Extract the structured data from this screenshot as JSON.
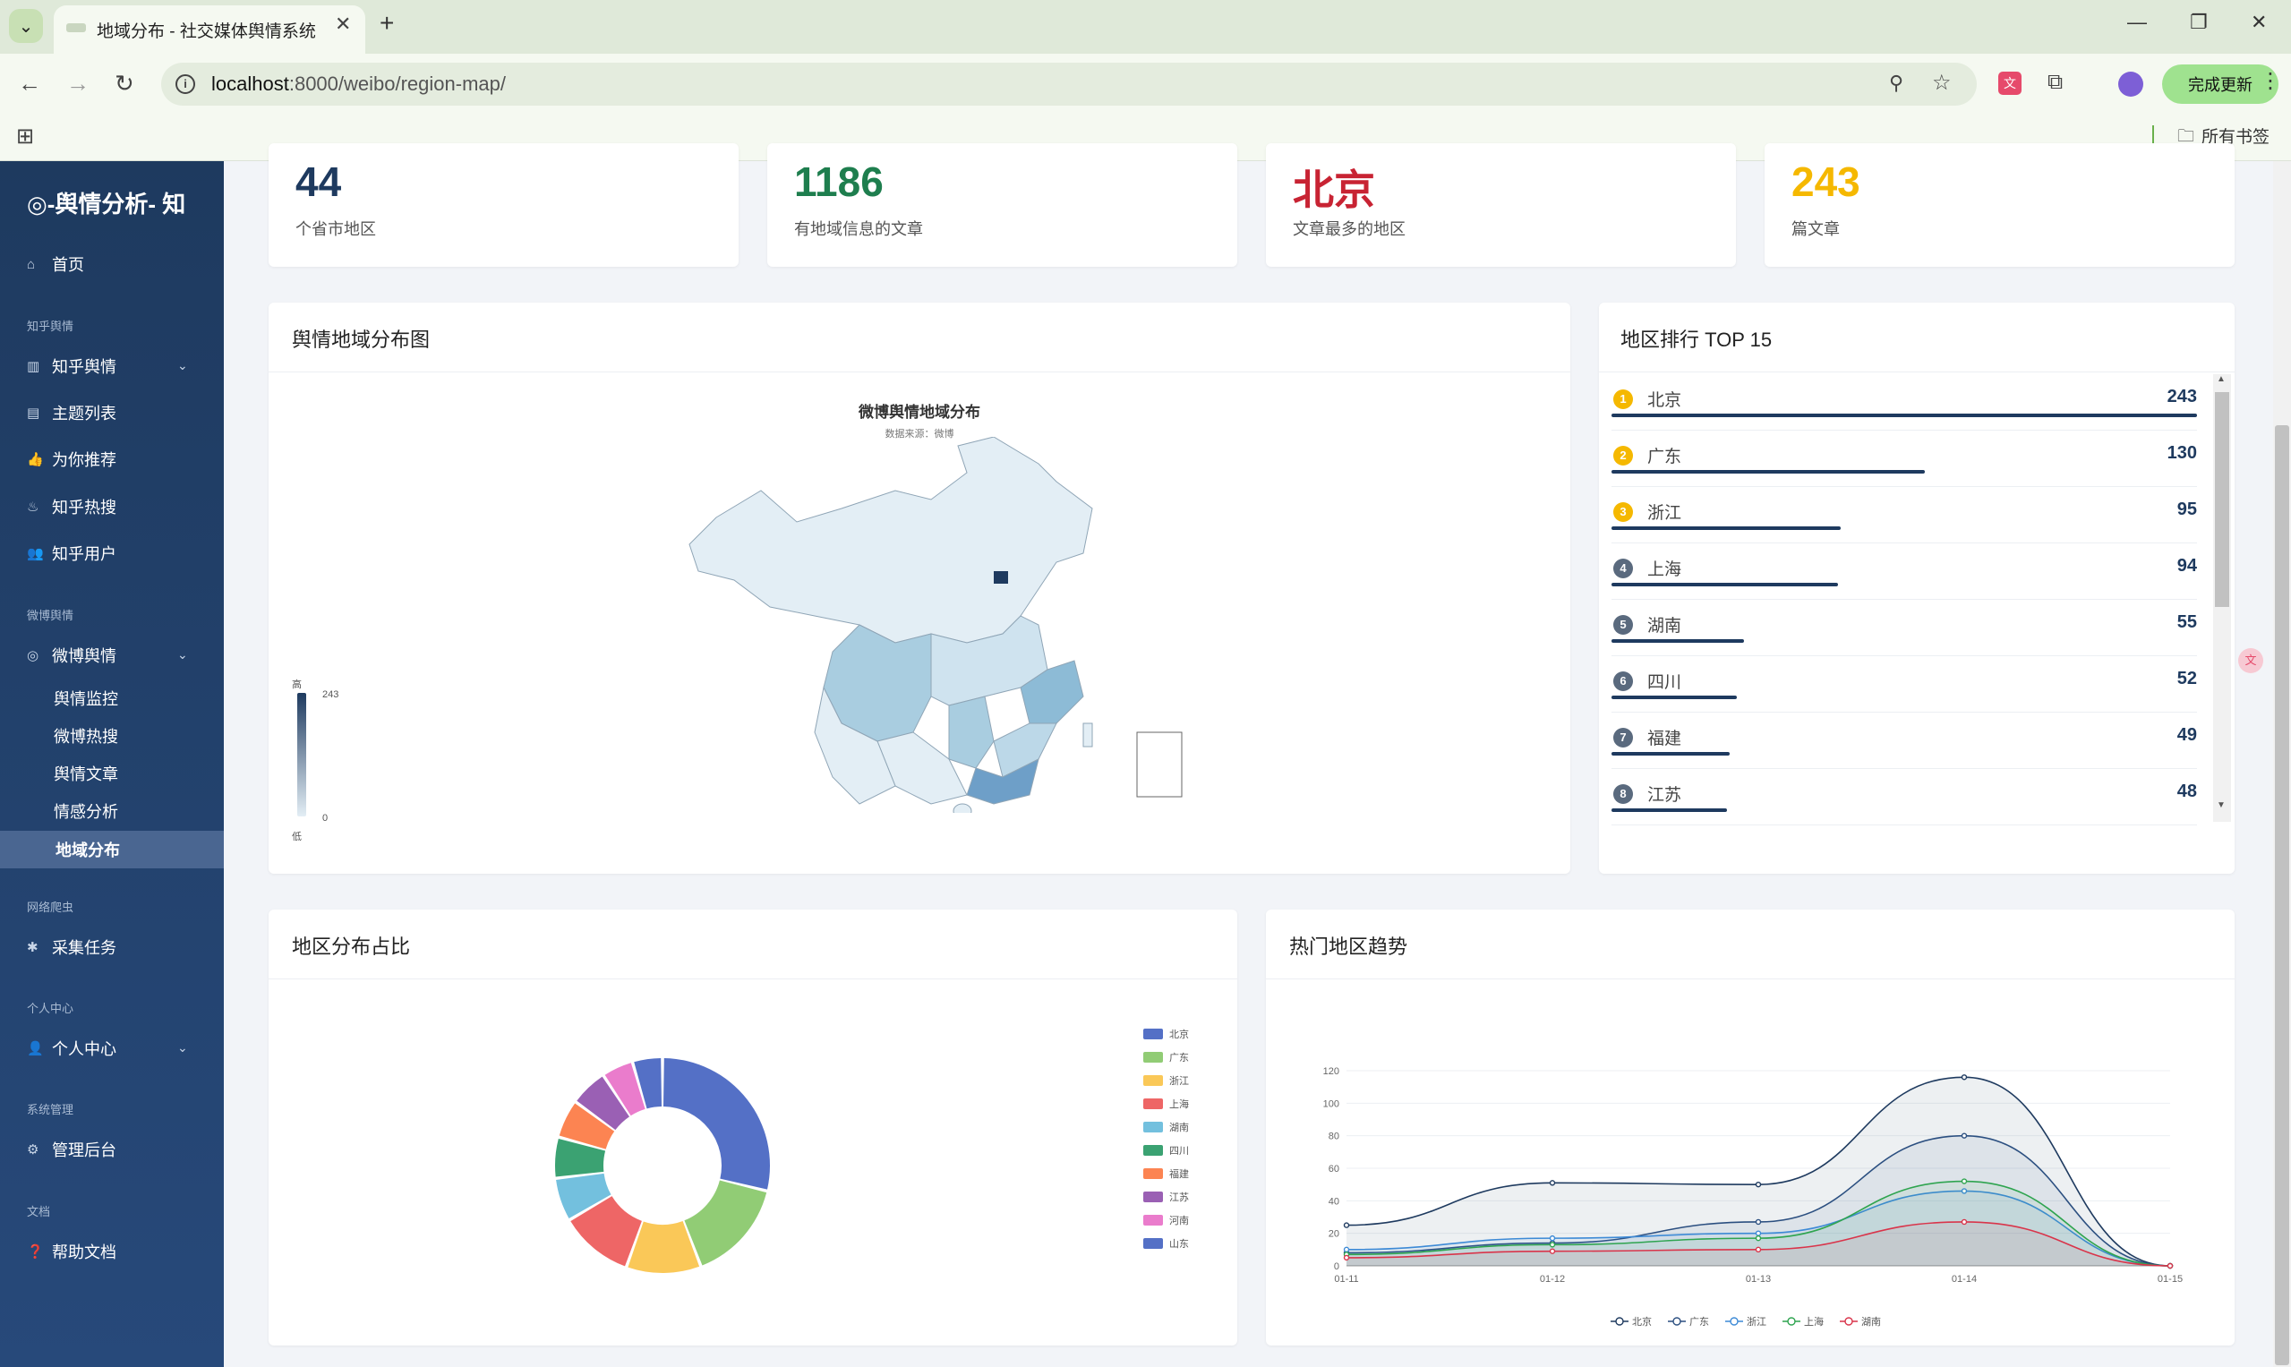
{
  "browser": {
    "tab_title": "地域分布 - 社交媒体舆情系统",
    "url_host": "localhost",
    "url_path": ":8000/weibo/region-map/",
    "update_label": "完成更新",
    "bookmarks_label": "所有书签"
  },
  "sidebar": {
    "brand": "-舆情分析- 知",
    "home": "首页",
    "sections": {
      "zhihu": "知乎舆情",
      "weibo": "微博舆情",
      "crawler": "网络爬虫",
      "personal": "个人中心",
      "system": "系统管理",
      "docs": "文档"
    },
    "items": {
      "zhihu_yq": "知乎舆情",
      "topics": "主题列表",
      "recommend": "为你推荐",
      "hot": "知乎热搜",
      "users": "知乎用户",
      "weibo_yq": "微博舆情",
      "monitor": "舆情监控",
      "weibo_hot": "微博热搜",
      "articles": "舆情文章",
      "sentiment": "情感分析",
      "region": "地域分布",
      "tasks": "采集任务",
      "personal_center": "个人中心",
      "admin": "管理后台",
      "help": "帮助文档"
    }
  },
  "stats": [
    {
      "value": "44",
      "label": "个省市地区",
      "color": "#1e3a5f"
    },
    {
      "value": "1186",
      "label": "有地域信息的文章",
      "color": "#1e7e4e"
    },
    {
      "value": "北京",
      "label": "文章最多的地区",
      "color": "#c82333"
    },
    {
      "value": "243",
      "label": "篇文章",
      "color": "#f5b800"
    }
  ],
  "map_card": {
    "title": "舆情地域分布图",
    "chart_title": "微博舆情地域分布",
    "chart_subtitle": "数据来源：微博",
    "legend_high": "高",
    "legend_low": "低",
    "legend_max": "243",
    "legend_min": "0"
  },
  "ranking": {
    "title": "地区排行 TOP 15",
    "max": 243,
    "items": [
      {
        "rank": "1",
        "name": "北京",
        "value": "243",
        "n": 243
      },
      {
        "rank": "2",
        "name": "广东",
        "value": "130",
        "n": 130
      },
      {
        "rank": "3",
        "name": "浙江",
        "value": "95",
        "n": 95
      },
      {
        "rank": "4",
        "name": "上海",
        "value": "94",
        "n": 94
      },
      {
        "rank": "5",
        "name": "湖南",
        "value": "55",
        "n": 55
      },
      {
        "rank": "6",
        "name": "四川",
        "value": "52",
        "n": 52
      },
      {
        "rank": "7",
        "name": "福建",
        "value": "49",
        "n": 49
      },
      {
        "rank": "8",
        "name": "江苏",
        "value": "48",
        "n": 48
      }
    ]
  },
  "pie_card": {
    "title": "地区分布占比"
  },
  "trend_card": {
    "title": "热门地区趋势"
  },
  "chart_data": [
    {
      "type": "pie",
      "title": "",
      "categories": [
        "北京",
        "广东",
        "浙江",
        "上海",
        "湖南",
        "四川",
        "福建",
        "江苏",
        "河南",
        "山东"
      ],
      "values": [
        243,
        130,
        95,
        94,
        55,
        52,
        49,
        48,
        40,
        38
      ],
      "colors": [
        "#5470c6",
        "#91cc75",
        "#fac858",
        "#ee6666",
        "#73c0de",
        "#3ba272",
        "#fc8452",
        "#9a60b4",
        "#ea7ccc",
        "#5470c6"
      ],
      "legend": "right"
    },
    {
      "type": "area",
      "title": "",
      "categories": [
        "01-11",
        "01-12",
        "01-13",
        "01-14",
        "01-15"
      ],
      "ylim": [
        0,
        120
      ],
      "yticks": [
        "0",
        "20",
        "40",
        "60",
        "80",
        "100",
        "120"
      ],
      "series": [
        {
          "name": "北京",
          "values": [
            25,
            51,
            50,
            116,
            0
          ],
          "color": "#1e3a5f"
        },
        {
          "name": "广东",
          "values": [
            8,
            14,
            27,
            80,
            0
          ],
          "color": "#2b4f80"
        },
        {
          "name": "浙江",
          "values": [
            10,
            17,
            20,
            46,
            0
          ],
          "color": "#3d8ad6"
        },
        {
          "name": "上海",
          "values": [
            7,
            13,
            17,
            52,
            0
          ],
          "color": "#2ea44f"
        },
        {
          "name": "湖南",
          "values": [
            5,
            9,
            10,
            27,
            0
          ],
          "color": "#d9344a"
        }
      ],
      "legend": "bottom"
    }
  ]
}
